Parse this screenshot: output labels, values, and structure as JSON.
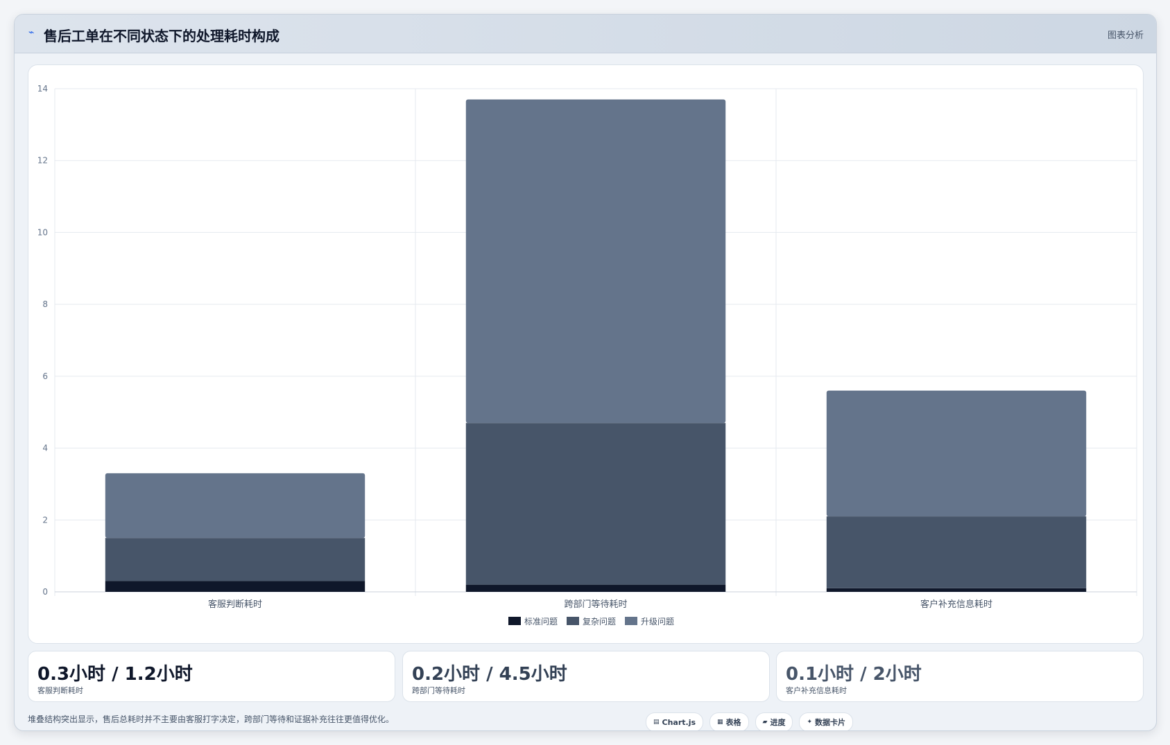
{
  "header": {
    "icon": "trend-line-icon",
    "title": "售后工单在不同状态下的处理耗时构成",
    "tag": "图表分析"
  },
  "chart_data": {
    "type": "bar",
    "stacked": true,
    "categories": [
      "客服判断耗时",
      "跨部门等待耗时",
      "客户补充信息耗时"
    ],
    "series": [
      {
        "name": "标准问题",
        "values": [
          0.3,
          0.2,
          0.1
        ],
        "color": "#0f172a"
      },
      {
        "name": "复杂问题",
        "values": [
          1.2,
          4.5,
          2.0
        ],
        "color": "#475569"
      },
      {
        "name": "升级问题",
        "values": [
          1.8,
          9.0,
          3.5
        ],
        "color": "#64748b"
      }
    ],
    "ylim": [
      0,
      14
    ],
    "yticks": [
      0,
      2,
      4,
      6,
      8,
      10,
      12,
      14
    ],
    "grid": true,
    "legend": "bottom"
  },
  "stats": [
    {
      "value": "0.3小时 / 1.2小时",
      "label": "客服判断耗时",
      "color": "#0f172a"
    },
    {
      "value": "0.2小时 / 4.5小时",
      "label": "跨部门等待耗时",
      "color": "#334155"
    },
    {
      "value": "0.1小时 / 2小时",
      "label": "客户补充信息耗时",
      "color": "#475569"
    }
  ],
  "footer": {
    "note": "堆叠结构突出显示，售后总耗时并不主要由客服打字决定，跨部门等待和证据补充往往更值得优化。",
    "chips": [
      {
        "icon": "chart-icon",
        "glyph": "▤",
        "label": "Chart.js"
      },
      {
        "icon": "table-icon",
        "glyph": "▦",
        "label": "表格"
      },
      {
        "icon": "progress-icon",
        "glyph": "▰",
        "label": "进度"
      },
      {
        "icon": "card-icon",
        "glyph": "✦",
        "label": "数据卡片"
      }
    ]
  }
}
